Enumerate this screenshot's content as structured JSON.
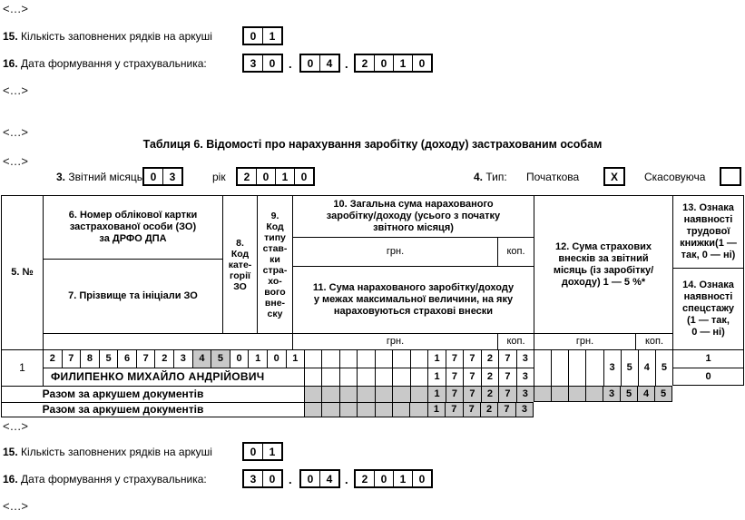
{
  "ellipsis": "<...>",
  "dot": ".",
  "top": {
    "rows_no": "15.",
    "rows_text": "Кількість заповнених рядків на аркуші",
    "rows_value": [
      "0",
      "1"
    ],
    "date_no": "16.",
    "date_text": "Дата формування у страхувальника:",
    "date_day": [
      "3",
      "0"
    ],
    "date_month": [
      "0",
      "4"
    ],
    "date_year": [
      "2",
      "0",
      "1",
      "0"
    ]
  },
  "table_title": "Таблиця 6. Відомості про нарахування заробітку (доходу) застрахованим особам",
  "meta": {
    "month_no": "3.",
    "month_text": "Звітний місяць",
    "month_value": [
      "0",
      "3"
    ],
    "year_text": "рік",
    "year_value": [
      "2",
      "0",
      "1",
      "0"
    ],
    "type_no": "4.",
    "type_text": "Тип:",
    "type_initial_label": "Початкова",
    "type_initial_mark": [
      "X"
    ],
    "type_cancel_label": "Скасовуюча",
    "type_cancel_mark": [
      ""
    ]
  },
  "header": {
    "c5": "5. №",
    "c6": "6. Номер облікової картки\nзастрахованої особи (ЗО)\nза ДРФО ДПА",
    "c7": "7. Прізвище та ініціали ЗО",
    "c8": "8.\nКод\nкате-\nгорії\nЗО",
    "c9": "9.\nКод\nтипу\nстав-\nки\nстра-\nхо-\nвого\nвне-\nску",
    "c10": "10. Загальна сума нарахованого\nзаробітку/доходу (усього з початку\nзвітного місяця)",
    "c11": "11. Сума нарахованого заробітку/доходу\nу межах максимальної величини, на яку\nнараховуються страхові внески",
    "c12": "12. Сума страхових\nвнесків за звітний\nмісяць (із заробітку/\nдоходу) 1 — 5 %*",
    "c13": "13. Ознака\nнаявності\nтрудової\nкнижки(1 —\nтак, 0 — ні)",
    "c14": "14. Ознака\nнаявності\nспецстажу\n(1 — так,\n0 — ні)",
    "grn": "грн.",
    "kop": "коп."
  },
  "row1": {
    "no": "1",
    "id_digits": [
      "2",
      "7",
      "8",
      "5",
      "6",
      "7",
      "2",
      "3",
      {
        "v": "4",
        "gray": true
      },
      {
        "v": "5",
        "gray": true
      },
      "0",
      "1",
      "0",
      "1"
    ],
    "name": "ФИЛИПЕНКО МИХАЙЛО АНДРІЙОВИЧ",
    "f10": [
      "",
      "",
      "",
      "",
      "",
      "",
      "",
      "1",
      "7",
      "7",
      "2",
      "7",
      "3"
    ],
    "f11": [
      "",
      "",
      "",
      "",
      "",
      "",
      "",
      "1",
      "7",
      "7",
      "2",
      "7",
      "3"
    ],
    "f12": [
      "",
      "",
      "",
      "",
      "3",
      "5",
      "4",
      "5"
    ],
    "c13": "1",
    "c14": "0"
  },
  "totals": {
    "label1": "Разом за аркушем документів",
    "row1_a": [
      "",
      "",
      "",
      "",
      "",
      "",
      "",
      "1",
      "7",
      "7",
      "2",
      "7",
      "3"
    ],
    "row1_b": [
      "",
      "",
      "",
      "",
      "3",
      "5",
      "4",
      "5"
    ],
    "label2": "Разом за аркушем документів",
    "row2_a": [
      "",
      "",
      "",
      "",
      "",
      "",
      "",
      "1",
      "7",
      "7",
      "2",
      "7",
      "3"
    ]
  },
  "bottom": {
    "rows_no": "15.",
    "rows_text": "Кількість заповнених рядків на аркуші",
    "rows_value": [
      "0",
      "1"
    ],
    "date_no": "16.",
    "date_text": "Дата формування у страхувальника:",
    "date_day": [
      "3",
      "0"
    ],
    "date_month": [
      "0",
      "4"
    ],
    "date_year": [
      "2",
      "0",
      "1",
      "0"
    ]
  }
}
